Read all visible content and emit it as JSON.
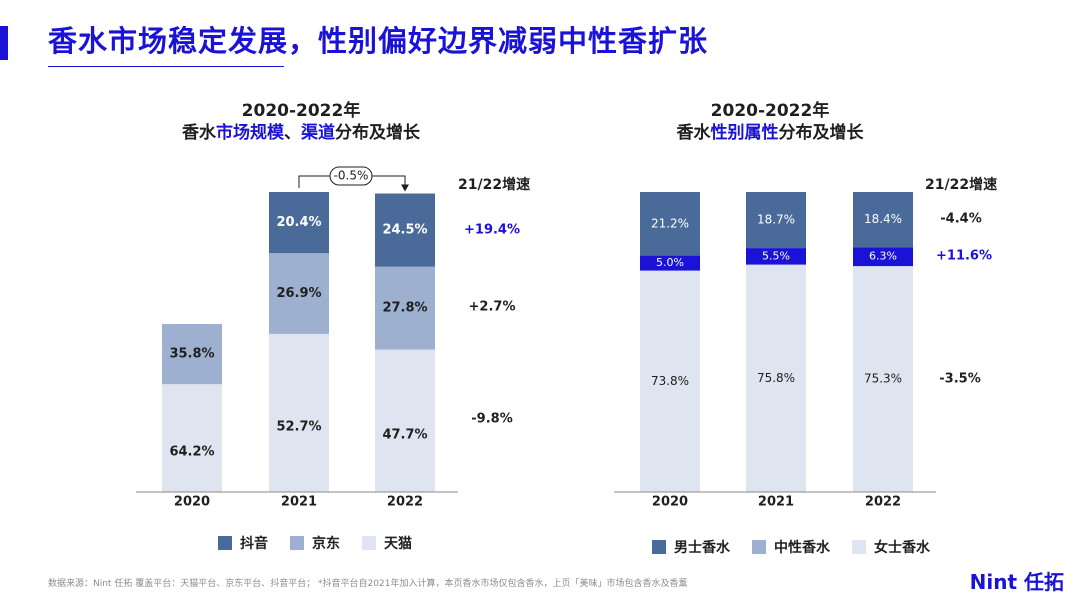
{
  "slide": {
    "title": "香水市场稳定发展，性别偏好边界减弱中性香扩张",
    "footnote": "数据来源：Nint 任拓   覆盖平台：天猫平台、京东平台、抖音平台；    *抖音平台自2021年加入计算，本页香水市场仅包含香水，上页「美味」市场包含香水及香薰",
    "logo": "Nint 任拓"
  },
  "colors": {
    "accent": "#1a12d6",
    "douyin": "#4a6a9a",
    "jd": "#9eb0d0",
    "tmall": "#dfe5f0",
    "men": "#4a6a9a",
    "unisex": "#1a12d6",
    "women": "#dfe5f0"
  },
  "chart_data": [
    {
      "type": "bar",
      "stacked": true,
      "title": {
        "line1": "2020-2022年",
        "line2_pre": "香水",
        "line2_hl1": "市场规模",
        "line2_sep": "、",
        "line2_hl2": "渠道",
        "line2_post": "分布及增长"
      },
      "categories": [
        "2020",
        "2021",
        "2022"
      ],
      "totals_relative": [
        0.56,
        1.0,
        0.995
      ],
      "series": [
        {
          "name": "天猫",
          "labels": [
            "64.2%",
            "52.7%",
            "47.7%"
          ],
          "values": [
            64.2,
            52.7,
            47.7
          ]
        },
        {
          "name": "京东",
          "labels": [
            "35.8%",
            "26.9%",
            "27.8%"
          ],
          "values": [
            35.8,
            26.9,
            27.8
          ]
        },
        {
          "name": "抖音",
          "labels": [
            "",
            "20.4%",
            "24.5%"
          ],
          "values": [
            0,
            20.4,
            24.5
          ]
        }
      ],
      "annotation": "-0.5%",
      "growth_header": "21/22增速",
      "growth": {
        "抖音": "+19.4%",
        "京东": "+2.7%",
        "天猫": "-9.8%"
      },
      "legend": [
        "抖音",
        "京东",
        "天猫"
      ]
    },
    {
      "type": "bar",
      "stacked": true,
      "title": {
        "line1": "2020-2022年",
        "line2_pre": "香水",
        "line2_hl1": "性别属性",
        "line2_post": "分布及增长"
      },
      "categories": [
        "2020",
        "2021",
        "2022"
      ],
      "series": [
        {
          "name": "女士香水",
          "labels": [
            "73.8%",
            "75.8%",
            "75.3%"
          ],
          "values": [
            73.8,
            75.8,
            75.3
          ]
        },
        {
          "name": "中性香水",
          "labels": [
            "5.0%",
            "5.5%",
            "6.3%"
          ],
          "values": [
            5.0,
            5.5,
            6.3
          ]
        },
        {
          "name": "男士香水",
          "labels": [
            "21.2%",
            "18.7%",
            "18.4%"
          ],
          "values": [
            21.2,
            18.7,
            18.4
          ]
        }
      ],
      "growth_header": "21/22增速",
      "growth": {
        "男士香水": "-4.4%",
        "中性香水": "+11.6%",
        "女士香水": "-3.5%"
      },
      "legend": [
        "男士香水",
        "中性香水",
        "女士香水"
      ]
    }
  ]
}
